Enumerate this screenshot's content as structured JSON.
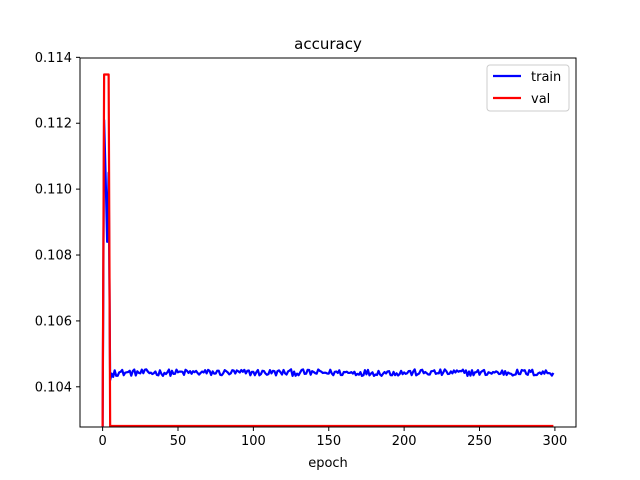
{
  "chart_data": {
    "type": "line",
    "title": "accuracy",
    "xlabel": "epoch",
    "ylabel": "",
    "xlim": [
      -15,
      314
    ],
    "ylim": [
      0.10278,
      0.11398
    ],
    "xticks": [
      0,
      50,
      100,
      150,
      200,
      250,
      300
    ],
    "yticks": [
      0.104,
      0.106,
      0.108,
      0.11,
      0.112,
      0.114
    ],
    "ytick_labels": [
      "0.104",
      "0.106",
      "0.108",
      "0.110",
      "0.112",
      "0.114"
    ],
    "grid": false,
    "legend_position": "top-right",
    "series": [
      {
        "name": "train",
        "color": "#0000ff",
        "values_head": [
          0.1028,
          0.1121,
          0.1104,
          0.1084,
          0.1105,
          0.1042,
          0.1044,
          0.1043,
          0.1045
        ],
        "steady_value": 0.10443,
        "noise_amplitude": 0.0001,
        "num_epochs": 300
      },
      {
        "name": "val",
        "color": "#ff0000",
        "values_head": [
          0.1028,
          0.11348,
          0.11348,
          0.11348,
          0.11348,
          0.1028
        ],
        "steady_value": 0.10281,
        "noise_amplitude": 0,
        "num_epochs": 300
      }
    ]
  }
}
